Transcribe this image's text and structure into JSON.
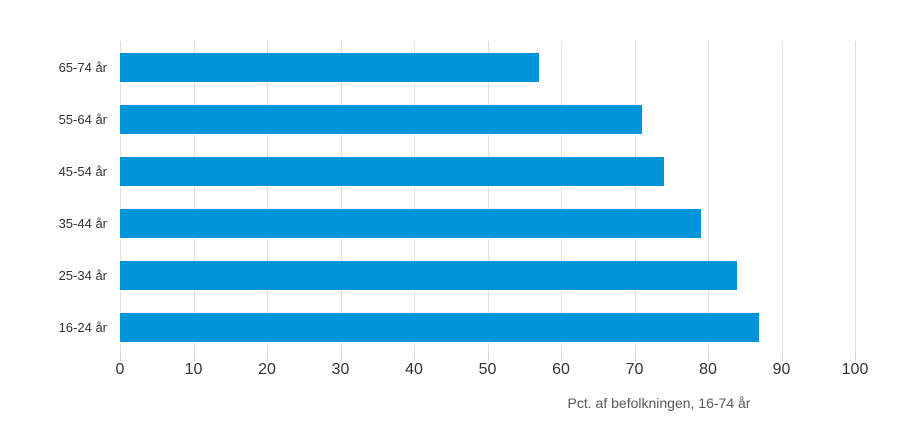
{
  "chart_data": {
    "type": "bar",
    "orientation": "horizontal",
    "title": "",
    "xlabel": "Pct. af befolkningen, 16-74 år",
    "ylabel": "",
    "categories": [
      "65-74 år",
      "55-64 år",
      "45-54 år",
      "35-44 år",
      "25-34 år",
      "16-24 år"
    ],
    "values": [
      57,
      71,
      74,
      79,
      84,
      87
    ],
    "xlim": [
      0,
      100
    ],
    "xticks": [
      0,
      10,
      20,
      30,
      40,
      50,
      60,
      70,
      80,
      90,
      100
    ],
    "grid": "vertical-only",
    "legend": "none",
    "colors": {
      "bar": "#0094d8",
      "gridline": "#e2e1df",
      "tick": "#d6d5d2",
      "tick_label": "#333333",
      "category_label": "#333333",
      "axis_title": "#58585a",
      "background": "#ffffff"
    }
  }
}
